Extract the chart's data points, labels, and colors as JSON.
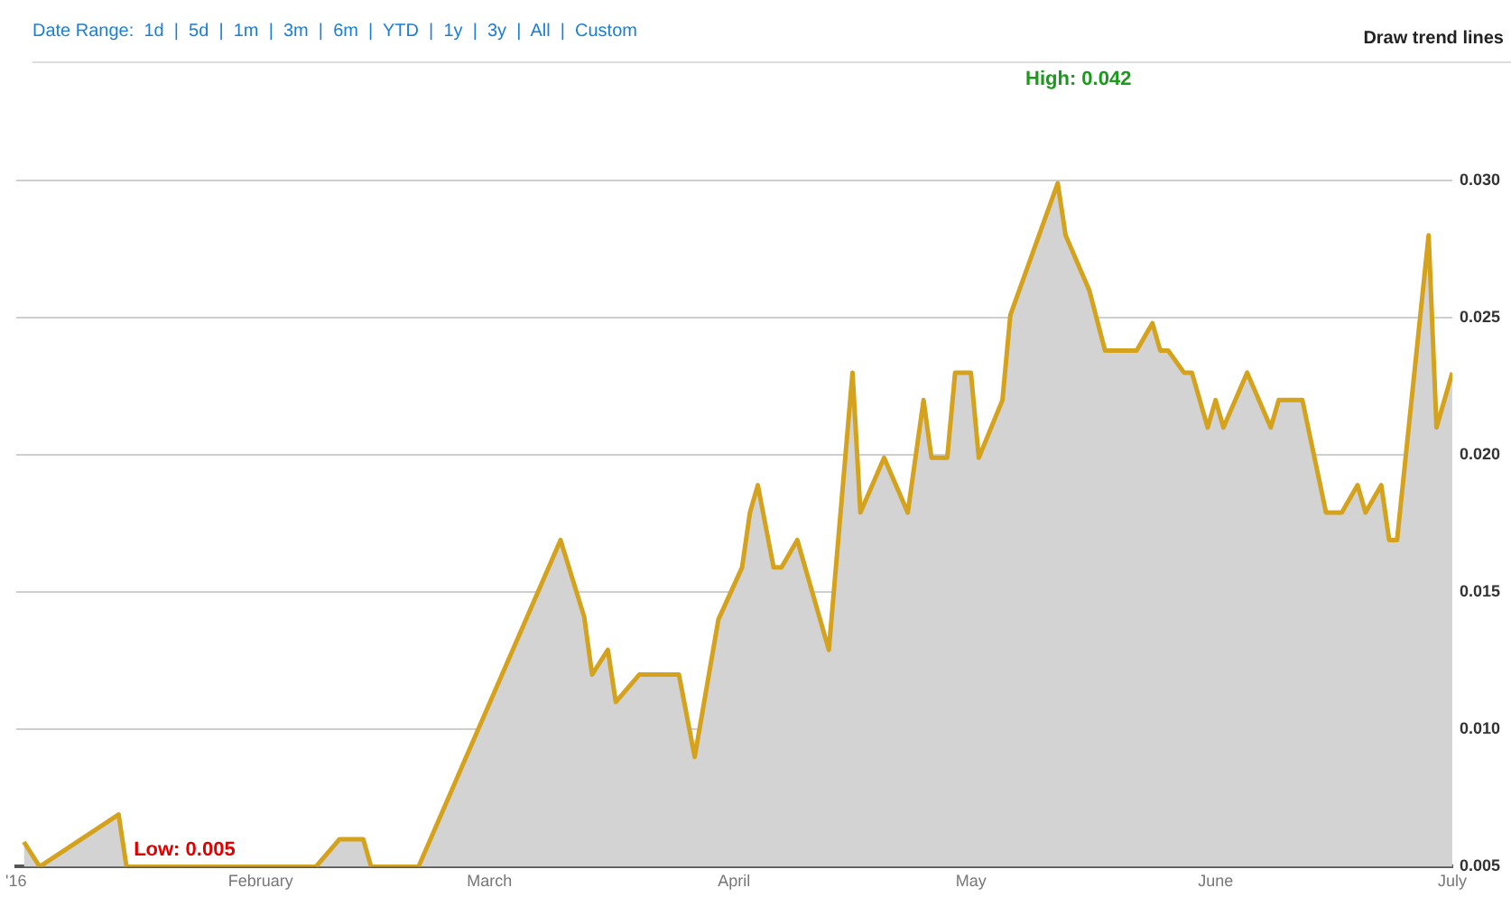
{
  "chart_data": {
    "type": "area",
    "x": [
      "2016-01-02",
      "2016-01-04",
      "2016-01-14",
      "2016-01-15",
      "2016-02-08",
      "2016-02-11",
      "2016-02-14",
      "2016-02-15",
      "2016-02-21",
      "2016-03-10",
      "2016-03-13",
      "2016-03-14",
      "2016-03-16",
      "2016-03-17",
      "2016-03-20",
      "2016-03-25",
      "2016-03-27",
      "2016-03-30",
      "2016-04-02",
      "2016-04-03",
      "2016-04-04",
      "2016-04-06",
      "2016-04-07",
      "2016-04-09",
      "2016-04-13",
      "2016-04-16",
      "2016-04-17",
      "2016-04-20",
      "2016-04-23",
      "2016-04-25",
      "2016-04-26",
      "2016-04-28",
      "2016-04-29",
      "2016-05-01",
      "2016-05-02",
      "2016-05-05",
      "2016-05-06",
      "2016-05-12",
      "2016-05-13",
      "2016-05-16",
      "2016-05-18",
      "2016-05-22",
      "2016-05-24",
      "2016-05-25",
      "2016-05-26",
      "2016-05-28",
      "2016-05-29",
      "2016-05-31",
      "2016-06-01",
      "2016-06-02",
      "2016-06-05",
      "2016-06-08",
      "2016-06-09",
      "2016-06-12",
      "2016-06-15",
      "2016-06-17",
      "2016-06-19",
      "2016-06-20",
      "2016-06-22",
      "2016-06-23",
      "2016-06-24",
      "2016-06-28",
      "2016-06-29",
      "2016-07-01"
    ],
    "series": [
      {
        "color": "#d4a21c",
        "values": [
          0.0059,
          0.005,
          0.0069,
          0.005,
          0.005,
          0.006,
          0.006,
          0.005,
          0.005,
          0.0169,
          0.0141,
          0.012,
          0.0129,
          0.011,
          0.012,
          0.012,
          0.009,
          0.014,
          0.0159,
          0.0179,
          0.0189,
          0.0159,
          0.0159,
          0.0169,
          0.0129,
          0.023,
          0.0179,
          0.0199,
          0.0179,
          0.022,
          0.0199,
          0.0199,
          0.023,
          0.023,
          0.0199,
          0.022,
          0.0251,
          0.0299,
          0.028,
          0.026,
          0.0238,
          0.0238,
          0.0248,
          0.0238,
          0.0238,
          0.023,
          0.023,
          0.021,
          0.022,
          0.021,
          0.023,
          0.021,
          0.022,
          0.022,
          0.0179,
          0.0179,
          0.0189,
          0.0179,
          0.0189,
          0.0169,
          0.0169,
          0.028,
          0.021,
          0.023
        ]
      }
    ],
    "xlim": [
      "2016-01-01",
      "2016-07-01"
    ],
    "xticks": [
      {
        "value": "2016-01-01",
        "label": "'16"
      },
      {
        "value": "2016-02-01",
        "label": "February"
      },
      {
        "value": "2016-03-01",
        "label": "March"
      },
      {
        "value": "2016-04-01",
        "label": "April"
      },
      {
        "value": "2016-05-01",
        "label": "May"
      },
      {
        "value": "2016-06-01",
        "label": "June"
      },
      {
        "value": "2016-07-01",
        "label": "July"
      }
    ],
    "ylim": [
      0.005,
      0.03
    ],
    "yticks": [
      {
        "value": 0.005,
        "label": "0.005"
      },
      {
        "value": 0.01,
        "label": "0.010"
      },
      {
        "value": 0.015,
        "label": "0.015"
      },
      {
        "value": 0.02,
        "label": "0.020"
      },
      {
        "value": 0.025,
        "label": "0.025"
      },
      {
        "value": 0.03,
        "label": "0.030"
      }
    ],
    "grid": "y",
    "legend": false,
    "marker": "none",
    "line_style": "solid",
    "annotations": [
      "Date Range:  1d  |  5d  |  1m  |  3m  |  6m  |  YTD  |  1y  |  3y  |  All  |  Custom",
      "Draw trend lines",
      "High: 0.042",
      {
        "text": "Low: 0.005",
        "x": "2016-01-15",
        "y": 0.005
      }
    ]
  }
}
